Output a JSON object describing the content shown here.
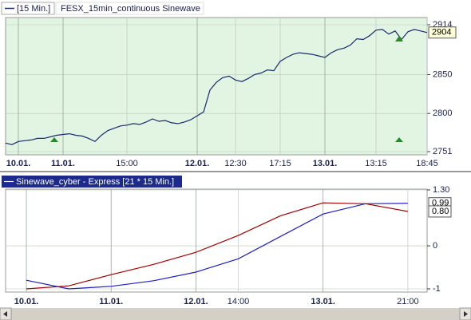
{
  "chart_data": [
    {
      "type": "line",
      "interval": "[15 Min.]",
      "title": "FESX_15min_continuous Sinewave",
      "categories": [
        null,
        null,
        "10.01.",
        null,
        null,
        null,
        null,
        null,
        null,
        "11.01.",
        null,
        null,
        null,
        null,
        null,
        null,
        null,
        null,
        null,
        "15:00",
        null,
        null,
        null,
        null,
        null,
        null,
        null,
        null,
        null,
        null,
        "12.01.",
        null,
        null,
        null,
        null,
        null,
        "12:30",
        null,
        null,
        null,
        null,
        null,
        null,
        "17:15",
        null,
        null,
        null,
        null,
        null,
        null,
        "13.01.",
        null,
        null,
        null,
        null,
        null,
        null,
        null,
        "13:15",
        null,
        null,
        null,
        null,
        null,
        null,
        null,
        "18:45"
      ],
      "values": [
        2762,
        2760,
        2764,
        2765,
        2766,
        2768,
        2768,
        2770,
        2772,
        2773,
        2774,
        2772,
        2771,
        2768,
        2764,
        2772,
        2778,
        2781,
        2784,
        2785,
        2787,
        2786,
        2789,
        2793,
        2790,
        2791,
        2788,
        2787,
        2789,
        2792,
        2797,
        2802,
        2830,
        2840,
        2846,
        2848,
        2843,
        2841,
        2845,
        2850,
        2852,
        2856,
        2855,
        2867,
        2872,
        2876,
        2878,
        2877,
        2876,
        2874,
        2872,
        2878,
        2882,
        2884,
        2888,
        2896,
        2895,
        2900,
        2907,
        2908,
        2902,
        2906,
        2895,
        2905,
        2908,
        2906,
        2904
      ],
      "color": "#1a2a6c",
      "background": "#e2f5e2",
      "ylim": [
        2751,
        2914
      ],
      "yticks": [
        2751,
        2800,
        2850,
        2914
      ],
      "grid": true
    },
    {
      "type": "line",
      "title": "Sinewave_cyber - Express [21 * 15 Min.]",
      "categories": [
        "10.01.",
        null,
        "11.01.",
        null,
        "12.01.",
        "14:00",
        null,
        "13.01.",
        null,
        "21:00"
      ],
      "series": [
        {
          "color": "#2020c0",
          "values": [
            -0.8,
            -1.0,
            -0.94,
            -0.81,
            -0.61,
            -0.3,
            0.22,
            0.74,
            0.98,
            0.99
          ]
        },
        {
          "color": "#a00000",
          "values": [
            -1.0,
            -0.93,
            -0.67,
            -0.43,
            -0.15,
            0.24,
            0.7,
            1.0,
            0.98,
            0.8
          ],
          "value_labels": [
            null,
            null,
            null,
            null,
            null,
            null,
            null,
            null,
            null,
            "0.80"
          ]
        }
      ],
      "background": "#ffffff",
      "ylim": [
        -1,
        1.3
      ],
      "yticks": [
        -1,
        0,
        {
          "value": 1.3,
          "label": "1.30"
        }
      ],
      "grid": true
    }
  ]
}
